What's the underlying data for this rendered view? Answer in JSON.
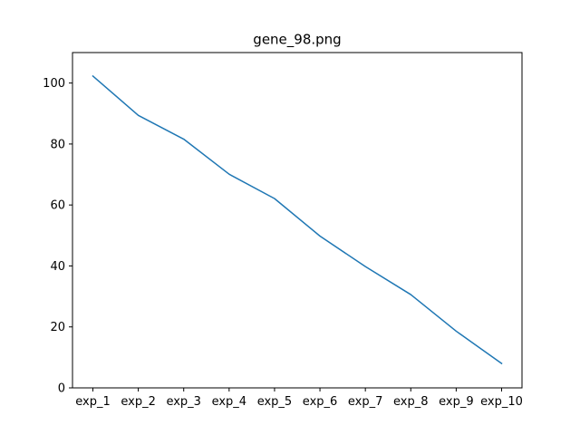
{
  "chart_data": {
    "type": "line",
    "title": "gene_98.png",
    "xlabel": "",
    "ylabel": "",
    "categories": [
      "exp_1",
      "exp_2",
      "exp_3",
      "exp_4",
      "exp_5",
      "exp_6",
      "exp_7",
      "exp_8",
      "exp_9",
      "exp_10"
    ],
    "series": [
      {
        "values": [
          102.3,
          89.4,
          81.6,
          70.1,
          62.1,
          49.8,
          39.8,
          30.6,
          18.6,
          8.0
        ],
        "color": "#1f77b4"
      }
    ],
    "yticks": [
      0,
      20,
      40,
      60,
      80,
      100
    ],
    "ylim": [
      0,
      110
    ],
    "grid": false,
    "legend": "none"
  }
}
